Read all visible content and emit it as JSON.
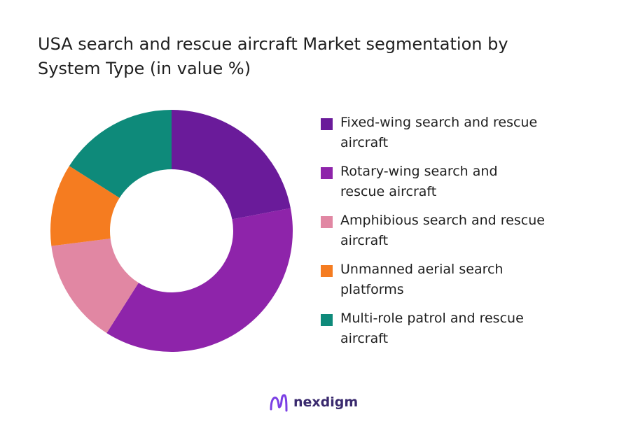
{
  "chart_data": {
    "type": "pie",
    "donut": true,
    "title_lines": [
      "USA search and rescue aircraft Market segmentation by",
      "System Type (in value %)"
    ],
    "categories": [
      {
        "label_lines": [
          "Fixed-wing search and rescue",
          "aircraft"
        ],
        "value": 22
      },
      {
        "label_lines": [
          "Rotary-wing search and",
          "rescue aircraft"
        ],
        "value": 37
      },
      {
        "label_lines": [
          "Amphibious search and rescue",
          "aircraft"
        ],
        "value": 14
      },
      {
        "label_lines": [
          "Unmanned aerial search",
          "platforms"
        ],
        "value": 11
      },
      {
        "label_lines": [
          "Multi-role patrol and rescue",
          "aircraft"
        ],
        "value": 16
      }
    ],
    "colors": [
      "#6a1b9a",
      "#8e24aa",
      "#e187a3",
      "#f57c20",
      "#0e8a7a"
    ],
    "start_angle_deg": 0,
    "direction": "clockwise",
    "legend_position": "right"
  },
  "brand": {
    "name": "nexdigm",
    "logo_icon": "nexdigm-logo-icon",
    "logo_color": "#7b3fe4"
  }
}
